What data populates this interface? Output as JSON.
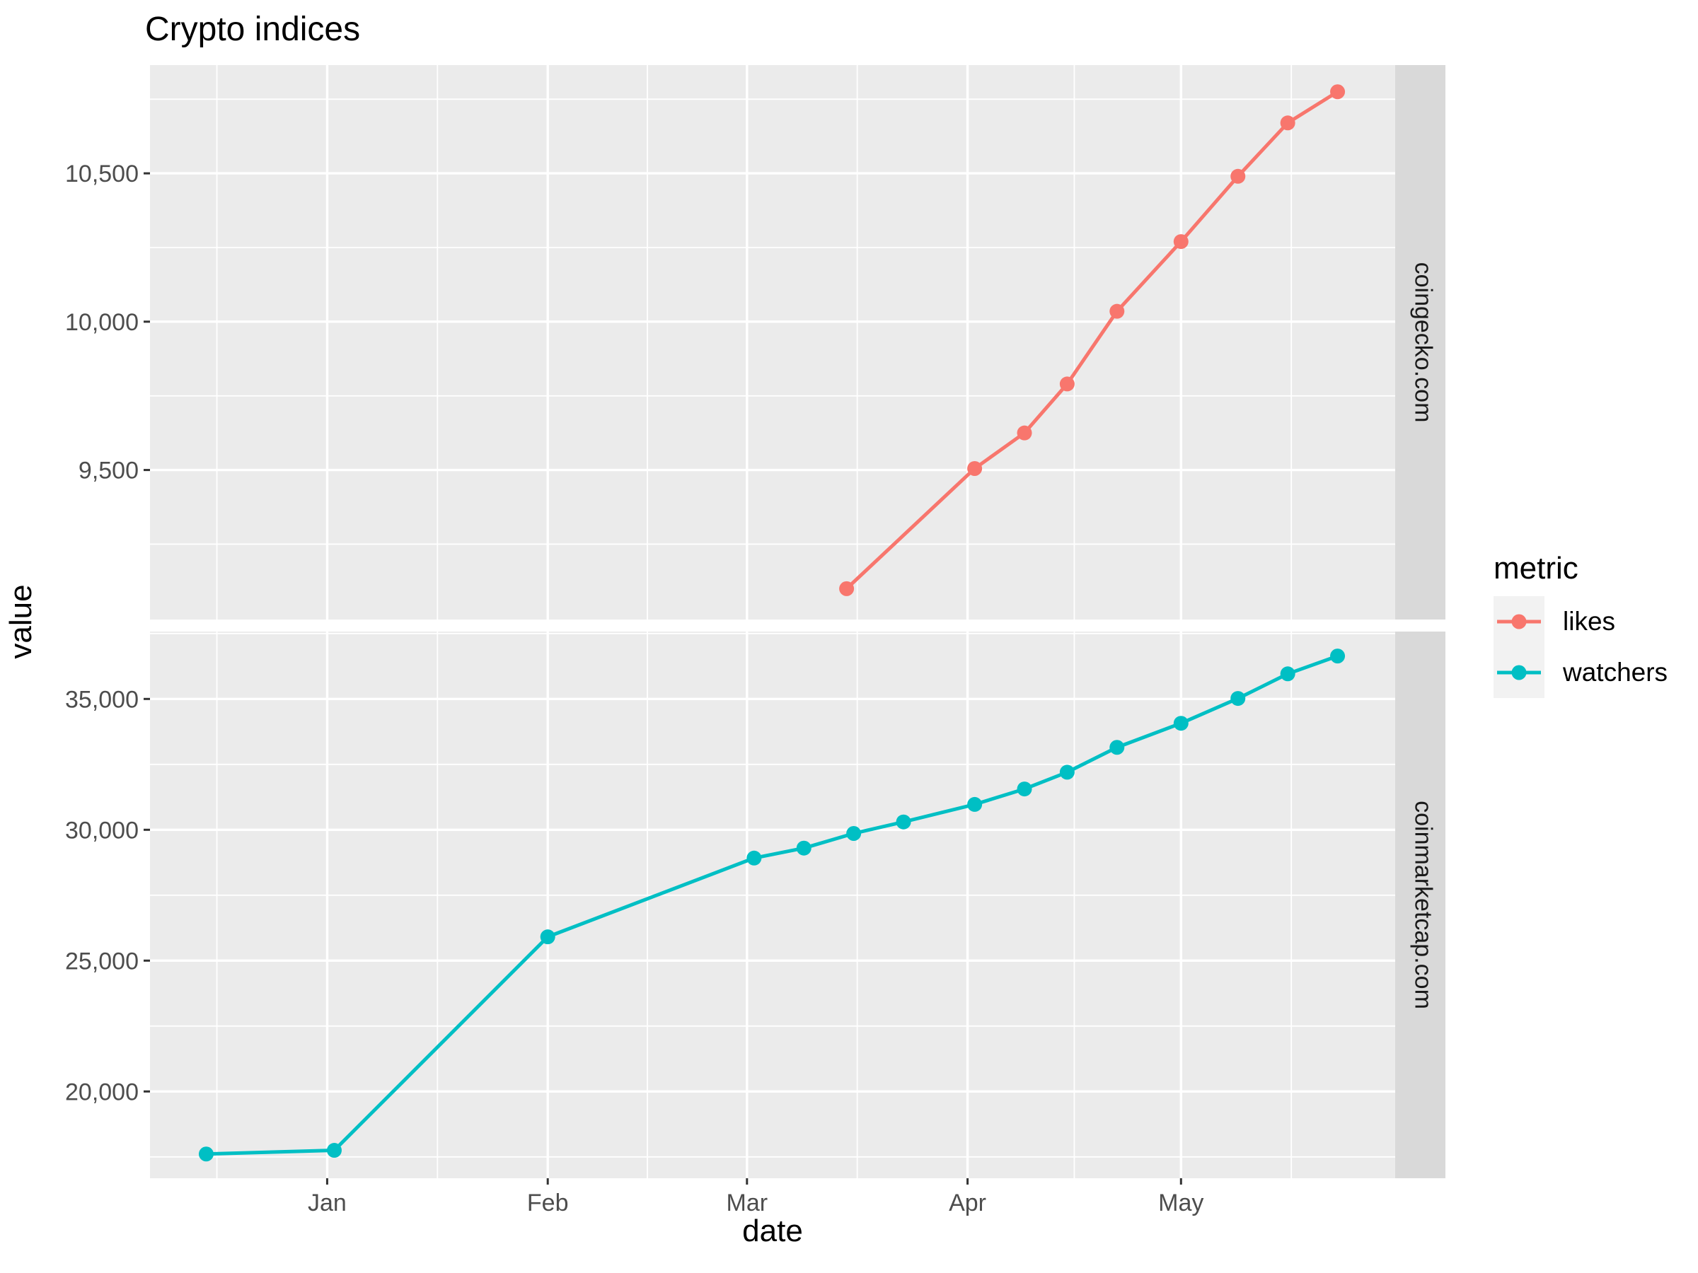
{
  "title": "Crypto indices",
  "axis": {
    "x_title": "date",
    "y_title": "value"
  },
  "legend": {
    "title": "metric",
    "items": [
      {
        "label": "likes",
        "color": "#F8766D"
      },
      {
        "label": "watchers",
        "color": "#00BFC4"
      }
    ]
  },
  "colors": {
    "panel_bg": "#EBEBEB",
    "strip_bg": "#D9D9D9",
    "grid": "#FFFFFF",
    "tick_text": "#4D4D4D",
    "tick_mark": "#333333",
    "strip_text": "#1A1A1A",
    "likes": "#F8766D",
    "watchers": "#00BFC4"
  },
  "chart_data": {
    "type": "line",
    "title": "Crypto indices",
    "xlabel": "date",
    "ylabel": "value",
    "grid": true,
    "legend_position": "right",
    "x_axis": {
      "domain_days": [
        -24.9,
        150.1
      ],
      "ticks": [
        {
          "label": "Jan",
          "day": 0
        },
        {
          "label": "Feb",
          "day": 31
        },
        {
          "label": "Mar",
          "day": 59
        },
        {
          "label": "Apr",
          "day": 90
        },
        {
          "label": "May",
          "day": 120
        }
      ],
      "minor_days": [
        -15.5,
        15.5,
        45,
        74.5,
        105,
        135.5
      ]
    },
    "facets": [
      {
        "label": "coingecko.com",
        "ylim": [
          8996,
          10865
        ],
        "y_ticks": [
          {
            "value": 9500,
            "label": "9,500"
          },
          {
            "value": 10000,
            "label": "10,000"
          },
          {
            "value": 10500,
            "label": "10,500"
          }
        ],
        "y_minor": [
          9250,
          9750,
          10250,
          10750
        ],
        "series": [
          {
            "name": "likes",
            "color": "#F8766D",
            "points": [
              {
                "date": "Mar 15",
                "day": 73,
                "value": 9100
              },
              {
                "date": "Apr 2",
                "day": 91,
                "value": 9505
              },
              {
                "date": "Apr 9",
                "day": 98,
                "value": 9625
              },
              {
                "date": "Apr 15",
                "day": 104,
                "value": 9790
              },
              {
                "date": "Apr 22",
                "day": 111,
                "value": 10035
              },
              {
                "date": "May 1",
                "day": 120,
                "value": 10270
              },
              {
                "date": "May 9",
                "day": 128,
                "value": 10490
              },
              {
                "date": "May 16",
                "day": 135,
                "value": 10670
              },
              {
                "date": "May 23",
                "day": 142,
                "value": 10775
              }
            ]
          }
        ]
      },
      {
        "label": "coinmarketcap.com",
        "ylim": [
          16684,
          37576
        ],
        "y_ticks": [
          {
            "value": 20000,
            "label": "20,000"
          },
          {
            "value": 25000,
            "label": "25,000"
          },
          {
            "value": 30000,
            "label": "30,000"
          },
          {
            "value": 35000,
            "label": "35,000"
          }
        ],
        "y_minor": [
          17500,
          22500,
          27500,
          32500,
          37500
        ],
        "series": [
          {
            "name": "watchers",
            "color": "#00BFC4",
            "points": [
              {
                "date": "Dec 15",
                "day": -17,
                "value": 17610
              },
              {
                "date": "Jan 2",
                "day": 1,
                "value": 17750
              },
              {
                "date": "Feb 1",
                "day": 31,
                "value": 25910
              },
              {
                "date": "Mar 2",
                "day": 60,
                "value": 28920
              },
              {
                "date": "Mar 9",
                "day": 67,
                "value": 29300
              },
              {
                "date": "Mar 16",
                "day": 74,
                "value": 29860
              },
              {
                "date": "Mar 23",
                "day": 81,
                "value": 30300
              },
              {
                "date": "Apr 2",
                "day": 91,
                "value": 30970
              },
              {
                "date": "Apr 9",
                "day": 98,
                "value": 31560
              },
              {
                "date": "Apr 15",
                "day": 104,
                "value": 32200
              },
              {
                "date": "Apr 22",
                "day": 111,
                "value": 33150
              },
              {
                "date": "May 1",
                "day": 120,
                "value": 34070
              },
              {
                "date": "May 9",
                "day": 128,
                "value": 35020
              },
              {
                "date": "May 16",
                "day": 135,
                "value": 35960
              },
              {
                "date": "May 23",
                "day": 142,
                "value": 36640
              }
            ]
          }
        ]
      }
    ]
  }
}
